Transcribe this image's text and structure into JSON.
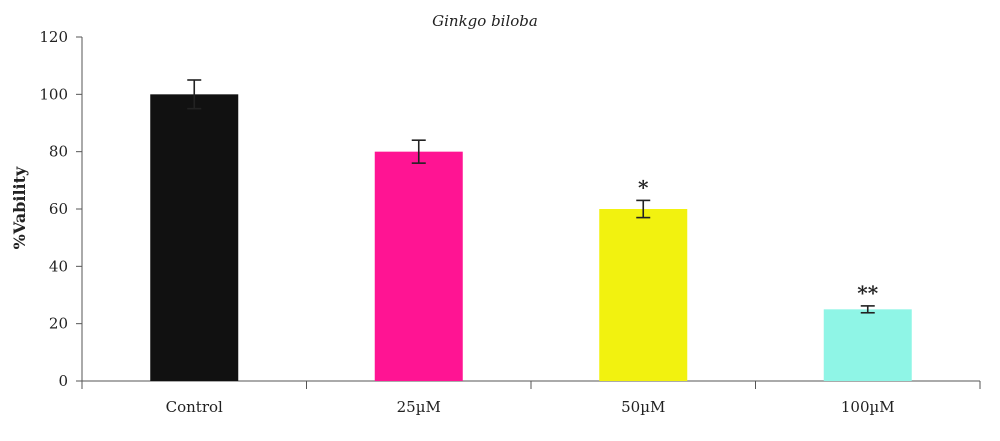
{
  "chart_data": {
    "type": "bar",
    "title": "Ginkgo biloba",
    "xlabel": "",
    "ylabel": "%Vability",
    "ylim": [
      0,
      120
    ],
    "yticks": [
      0,
      20,
      40,
      60,
      80,
      100,
      120
    ],
    "grid": false,
    "legend": "none",
    "categories": [
      "Control",
      "25µM",
      "50µM",
      "100µM"
    ],
    "values": [
      100,
      80,
      60,
      25
    ],
    "errors": [
      5,
      4,
      3,
      1.2
    ],
    "annotations": [
      "",
      "",
      "*",
      "**"
    ],
    "colors": [
      "#111111",
      "#ff1493",
      "#f2f20f",
      "#8ff5e6"
    ]
  }
}
